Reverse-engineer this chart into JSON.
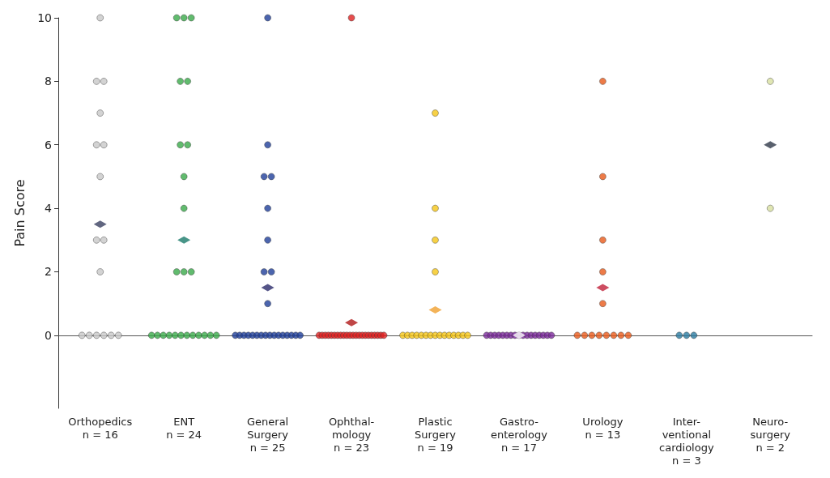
{
  "chart_data": {
    "type": "scatter",
    "ylabel": "Pain Score",
    "categories": [
      "Orthopedics\nn = 16",
      "ENT\nn = 24",
      "General\nSurgery\nn = 25",
      "Ophthal-\nmology\nn = 23",
      "Plastic\nSurgery\nn = 19",
      "Gastro-\nenterology\nn = 17",
      "Urology\nn = 13",
      "Inter-\nventional\ncardiology\nn = 3",
      "Neuro-\nsurgery\nn = 2"
    ],
    "ylim": [
      -2.3,
      10
    ],
    "yticks": [
      0,
      2,
      4,
      6,
      8,
      10
    ],
    "marker": "circle",
    "series": [
      {
        "color": "#c8c8c8",
        "x": [
          "Orthopedics\nn = 16",
          "Orthopedics\nn = 16",
          "Orthopedics\nn = 16",
          "Orthopedics\nn = 16",
          "Orthopedics\nn = 16",
          "Orthopedics\nn = 16",
          "Orthopedics\nn = 16",
          "Orthopedics\nn = 16",
          "Orthopedics\nn = 16",
          "Orthopedics\nn = 16",
          "Orthopedics\nn = 16",
          "Orthopedics\nn = 16",
          "Orthopedics\nn = 16",
          "Orthopedics\nn = 16",
          "Orthopedics\nn = 16",
          "Orthopedics\nn = 16"
        ],
        "values": [
          10,
          8,
          8,
          7,
          6,
          6,
          5,
          3,
          3,
          2,
          0,
          0,
          0,
          0,
          0,
          0
        ]
      },
      {
        "color": "#3aaa4a",
        "x": [
          "ENT\nn = 24",
          "ENT\nn = 24",
          "ENT\nn = 24",
          "ENT\nn = 24",
          "ENT\nn = 24",
          "ENT\nn = 24",
          "ENT\nn = 24",
          "ENT\nn = 24",
          "ENT\nn = 24",
          "ENT\nn = 24",
          "ENT\nn = 24",
          "ENT\nn = 24",
          "ENT\nn = 24",
          "ENT\nn = 24",
          "ENT\nn = 24",
          "ENT\nn = 24",
          "ENT\nn = 24",
          "ENT\nn = 24",
          "ENT\nn = 24",
          "ENT\nn = 24",
          "ENT\nn = 24",
          "ENT\nn = 24",
          "ENT\nn = 24",
          "ENT\nn = 24"
        ],
        "values": [
          10,
          10,
          10,
          8,
          8,
          6,
          6,
          5,
          4,
          2,
          2,
          2,
          0,
          0,
          0,
          0,
          0,
          0,
          0,
          0,
          0,
          0,
          0,
          0
        ]
      },
      {
        "color": "#1f3f9a",
        "x": [
          "General\nSurgery\nn = 25",
          "General\nSurgery\nn = 25",
          "General\nSurgery\nn = 25",
          "General\nSurgery\nn = 25",
          "General\nSurgery\nn = 25",
          "General\nSurgery\nn = 25",
          "General\nSurgery\nn = 25",
          "General\nSurgery\nn = 25",
          "General\nSurgery\nn = 25",
          "General\nSurgery\nn = 25",
          "General\nSurgery\nn = 25",
          "General\nSurgery\nn = 25",
          "General\nSurgery\nn = 25",
          "General\nSurgery\nn = 25",
          "General\nSurgery\nn = 25",
          "General\nSurgery\nn = 25",
          "General\nSurgery\nn = 25",
          "General\nSurgery\nn = 25",
          "General\nSurgery\nn = 25",
          "General\nSurgery\nn = 25",
          "General\nSurgery\nn = 25",
          "General\nSurgery\nn = 25",
          "General\nSurgery\nn = 25",
          "General\nSurgery\nn = 25",
          "General\nSurgery\nn = 25"
        ],
        "values": [
          10,
          6,
          5,
          5,
          4,
          3,
          2,
          2,
          1,
          0,
          0,
          0,
          0,
          0,
          0,
          0,
          0,
          0,
          0,
          0,
          0,
          0,
          0,
          0,
          0
        ]
      },
      {
        "color": "#e02020",
        "x": [
          "Ophthal-\nmology\nn = 23",
          "Ophthal-\nmology\nn = 23",
          "Ophthal-\nmology\nn = 23",
          "Ophthal-\nmology\nn = 23",
          "Ophthal-\nmology\nn = 23",
          "Ophthal-\nmology\nn = 23",
          "Ophthal-\nmology\nn = 23",
          "Ophthal-\nmology\nn = 23",
          "Ophthal-\nmology\nn = 23",
          "Ophthal-\nmology\nn = 23",
          "Ophthal-\nmology\nn = 23",
          "Ophthal-\nmology\nn = 23",
          "Ophthal-\nmology\nn = 23",
          "Ophthal-\nmology\nn = 23",
          "Ophthal-\nmology\nn = 23",
          "Ophthal-\nmology\nn = 23",
          "Ophthal-\nmology\nn = 23",
          "Ophthal-\nmology\nn = 23",
          "Ophthal-\nmology\nn = 23",
          "Ophthal-\nmology\nn = 23",
          "Ophthal-\nmology\nn = 23",
          "Ophthal-\nmology\nn = 23",
          "Ophthal-\nmology\nn = 23"
        ],
        "values": [
          10,
          0,
          0,
          0,
          0,
          0,
          0,
          0,
          0,
          0,
          0,
          0,
          0,
          0,
          0,
          0,
          0,
          0,
          0,
          0,
          0,
          0,
          0
        ]
      },
      {
        "color": "#f5c518",
        "x": [
          "Plastic\nSurgery\nn = 19",
          "Plastic\nSurgery\nn = 19",
          "Plastic\nSurgery\nn = 19",
          "Plastic\nSurgery\nn = 19",
          "Plastic\nSurgery\nn = 19",
          "Plastic\nSurgery\nn = 19",
          "Plastic\nSurgery\nn = 19",
          "Plastic\nSurgery\nn = 19",
          "Plastic\nSurgery\nn = 19",
          "Plastic\nSurgery\nn = 19",
          "Plastic\nSurgery\nn = 19",
          "Plastic\nSurgery\nn = 19",
          "Plastic\nSurgery\nn = 19",
          "Plastic\nSurgery\nn = 19",
          "Plastic\nSurgery\nn = 19",
          "Plastic\nSurgery\nn = 19",
          "Plastic\nSurgery\nn = 19",
          "Plastic\nSurgery\nn = 19",
          "Plastic\nSurgery\nn = 19"
        ],
        "values": [
          7,
          4,
          3,
          2,
          0,
          0,
          0,
          0,
          0,
          0,
          0,
          0,
          0,
          0,
          0,
          0,
          0,
          0,
          0
        ]
      },
      {
        "color": "#7a2a9a",
        "x": [
          "Gastro-\nenterology\nn = 17",
          "Gastro-\nenterology\nn = 17",
          "Gastro-\nenterology\nn = 17",
          "Gastro-\nenterology\nn = 17",
          "Gastro-\nenterology\nn = 17",
          "Gastro-\nenterology\nn = 17",
          "Gastro-\nenterology\nn = 17",
          "Gastro-\nenterology\nn = 17",
          "Gastro-\nenterology\nn = 17",
          "Gastro-\nenterology\nn = 17",
          "Gastro-\nenterology\nn = 17",
          "Gastro-\nenterology\nn = 17",
          "Gastro-\nenterology\nn = 17",
          "Gastro-\nenterology\nn = 17",
          "Gastro-\nenterology\nn = 17",
          "Gastro-\nenterology\nn = 17",
          "Gastro-\nenterology\nn = 17"
        ],
        "values": [
          0,
          0,
          0,
          0,
          0,
          0,
          0,
          0,
          0,
          0,
          0,
          0,
          0,
          0,
          0,
          0,
          0
        ]
      },
      {
        "color": "#e85a1a",
        "x": [
          "Urology\nn = 13",
          "Urology\nn = 13",
          "Urology\nn = 13",
          "Urology\nn = 13",
          "Urology\nn = 13",
          "Urology\nn = 13",
          "Urology\nn = 13",
          "Urology\nn = 13",
          "Urology\nn = 13",
          "Urology\nn = 13",
          "Urology\nn = 13",
          "Urology\nn = 13",
          "Urology\nn = 13"
        ],
        "values": [
          8,
          5,
          3,
          2,
          1,
          0,
          0,
          0,
          0,
          0,
          0,
          0,
          0
        ]
      },
      {
        "color": "#2a7aa0",
        "x": [
          "Inter-\nventional\ncardiology\nn = 3",
          "Inter-\nventional\ncardiology\nn = 3",
          "Inter-\nventional\ncardiology\nn = 3"
        ],
        "values": [
          0,
          0,
          0
        ]
      },
      {
        "color": "#d8e0a0",
        "x": [
          "Neuro-\nsurgery\nn = 2",
          "Neuro-\nsurgery\nn = 2"
        ],
        "values": [
          8,
          4
        ]
      },
      {
        "type": "scatter",
        "marker": "diamond",
        "color": "#3a4060",
        "x": [
          "Orthopedics\nn = 16"
        ],
        "values": [
          3.5
        ]
      },
      {
        "type": "scatter",
        "marker": "diamond",
        "color": "#1a7a6a",
        "x": [
          "ENT\nn = 24"
        ],
        "values": [
          3
        ]
      },
      {
        "type": "scatter",
        "marker": "diamond",
        "color": "#2a2a6a",
        "x": [
          "General\nSurgery\nn = 25"
        ],
        "values": [
          1.5
        ]
      },
      {
        "type": "scatter",
        "marker": "diamond",
        "color": "#b01818",
        "x": [
          "Ophthal-\nmology\nn = 23"
        ],
        "values": [
          0.4
        ]
      },
      {
        "type": "scatter",
        "marker": "diamond",
        "color": "#f0a030",
        "x": [
          "Plastic\nSurgery\nn = 19"
        ],
        "values": [
          0.8
        ]
      },
      {
        "type": "scatter",
        "marker": "diamond",
        "color": "#ffffff",
        "x": [
          "Gastro-\nenterology\nn = 17"
        ],
        "values": [
          0
        ]
      },
      {
        "type": "scatter",
        "marker": "diamond",
        "color": "#c0203a",
        "x": [
          "Urology\nn = 13"
        ],
        "values": [
          1.5
        ]
      },
      {
        "type": "scatter",
        "marker": "diamond",
        "color": "#303848",
        "x": [
          "Neuro-\nsurgery\nn = 2"
        ],
        "values": [
          6
        ]
      }
    ]
  }
}
